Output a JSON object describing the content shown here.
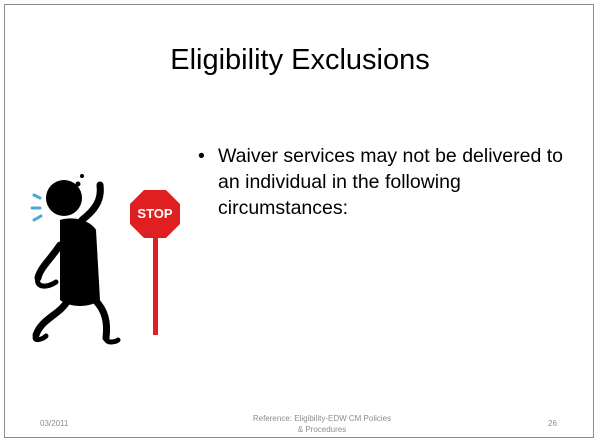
{
  "slide": {
    "title": "Eligibility Exclusions",
    "bullets": [
      "Waiver services may not be delivered to  an individual in the following circumstances:"
    ],
    "clipart_sign": "STOP",
    "footer": {
      "date": "03/2011",
      "reference": "Reference:  Eligibility-EDW CM Policies & Procedures",
      "page": "26"
    }
  }
}
